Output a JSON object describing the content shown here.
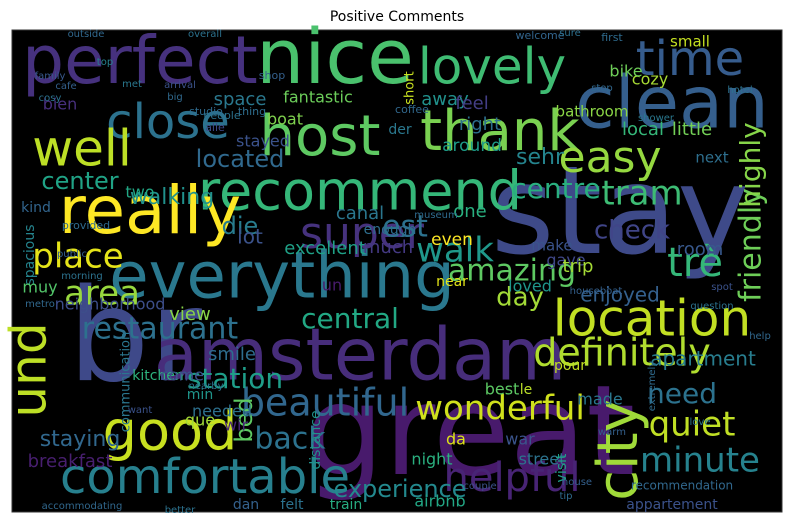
{
  "chart_data": {
    "type": "wordcloud",
    "title": "Positive Comments",
    "background": "#000000",
    "words": [
      {
        "text": "br",
        "color": "#3e4989"
      },
      {
        "text": "great",
        "color": "#481a6c"
      },
      {
        "text": "stay",
        "color": "#3e4a89"
      },
      {
        "text": "amsterdam",
        "color": "#472d7b"
      },
      {
        "text": "nice",
        "color": "#4ac16d"
      },
      {
        "text": "perfect",
        "color": "#46317e"
      },
      {
        "text": "clean",
        "color": "#355f8d"
      },
      {
        "text": "host",
        "color": "#5ec962"
      },
      {
        "text": "thank",
        "color": "#7ad151"
      },
      {
        "text": "lovely",
        "color": "#3fbc73"
      },
      {
        "text": "time",
        "color": "#365c8d"
      },
      {
        "text": "close",
        "color": "#2c728e"
      },
      {
        "text": "recommend",
        "color": "#35b779"
      },
      {
        "text": "really",
        "color": "#fde725"
      },
      {
        "text": "well",
        "color": "#bddf26"
      },
      {
        "text": "easy",
        "color": "#95d840"
      },
      {
        "text": "super",
        "color": "#46327e"
      },
      {
        "text": "everything",
        "color": "#2a788e"
      },
      {
        "text": "location",
        "color": "#c2df23"
      },
      {
        "text": "comfortable",
        "color": "#27808e"
      },
      {
        "text": "good",
        "color": "#c8e020"
      },
      {
        "text": "city",
        "color": "#a0da39"
      },
      {
        "text": "und",
        "color": "#bddf26"
      },
      {
        "text": "definitely",
        "color": "#b0dd2f"
      },
      {
        "text": "beautiful",
        "color": "#31678e"
      },
      {
        "text": "wonderful",
        "color": "#d0e11c"
      },
      {
        "text": "helpful",
        "color": "#482475"
      },
      {
        "text": "minute",
        "color": "#26828e"
      },
      {
        "text": "quiet",
        "color": "#c0df25"
      },
      {
        "text": "amazing",
        "color": "#5ec962"
      },
      {
        "text": "restaurant",
        "color": "#2d718e"
      },
      {
        "text": "tram",
        "color": "#3dbc74"
      },
      {
        "text": "trè",
        "color": "#35b779"
      },
      {
        "text": "friendly",
        "color": "#6ece58"
      },
      {
        "text": "highly",
        "color": "#86d549"
      },
      {
        "text": "walk",
        "color": "#1f988b"
      },
      {
        "text": "est",
        "color": "#2c728e"
      },
      {
        "text": "check",
        "color": "#404588"
      },
      {
        "text": "place",
        "color": "#e5e419"
      },
      {
        "text": "area",
        "color": "#98d83e"
      },
      {
        "text": "center",
        "color": "#20a386"
      },
      {
        "text": "located",
        "color": "#30698e"
      },
      {
        "text": "walking",
        "color": "#21918c"
      },
      {
        "text": "die",
        "color": "#287c8e"
      },
      {
        "text": "central",
        "color": "#22a884"
      },
      {
        "text": "day",
        "color": "#a2da37"
      },
      {
        "text": "station",
        "color": "#1f9e89"
      },
      {
        "text": "back",
        "color": "#2c728e"
      },
      {
        "text": "bed",
        "color": "#5ec962"
      },
      {
        "text": "need",
        "color": "#2c728e"
      },
      {
        "text": "apartment",
        "color": "#287d8e"
      },
      {
        "text": "centre",
        "color": "#29af7f"
      },
      {
        "text": "sehr",
        "color": "#25848e"
      },
      {
        "text": "enjoyed",
        "color": "#34608d"
      },
      {
        "text": "experience",
        "color": "#23898e"
      },
      {
        "text": "staying",
        "color": "#31688e"
      },
      {
        "text": "breakfast",
        "color": "#481f70"
      },
      {
        "text": "excellent",
        "color": "#1fa187"
      },
      {
        "text": "lot",
        "color": "#3b528b"
      },
      {
        "text": "much",
        "color": "#443983"
      },
      {
        "text": "fantastic",
        "color": "#6ccd5a"
      },
      {
        "text": "space",
        "color": "#2a788e"
      },
      {
        "text": "boat",
        "color": "#7fd34e"
      },
      {
        "text": "stayed",
        "color": "#3b528b"
      },
      {
        "text": "away",
        "color": "#21918c"
      },
      {
        "text": "feel",
        "color": "#433e85"
      },
      {
        "text": "small",
        "color": "#c5e021"
      },
      {
        "text": "cozy",
        "color": "#a8db34"
      },
      {
        "text": "bike",
        "color": "#6ece58"
      },
      {
        "text": "bathroom",
        "color": "#8bd646"
      },
      {
        "text": "local",
        "color": "#35b779"
      },
      {
        "text": "little",
        "color": "#73d056"
      },
      {
        "text": "next",
        "color": "#2e6f8e"
      },
      {
        "text": "right",
        "color": "#2d708e"
      },
      {
        "text": "around",
        "color": "#1e9c89"
      },
      {
        "text": "bien",
        "color": "#472f7d"
      },
      {
        "text": "kind",
        "color": "#32658e"
      },
      {
        "text": "spacious",
        "color": "#25848e"
      },
      {
        "text": "muy",
        "color": "#52c569"
      },
      {
        "text": "two",
        "color": "#22a785"
      },
      {
        "text": "one",
        "color": "#29af7f"
      },
      {
        "text": "canal",
        "color": "#2a768e"
      },
      {
        "text": "room",
        "color": "#38588c"
      },
      {
        "text": "even",
        "color": "#fde725"
      },
      {
        "text": "enough",
        "color": "#2e6e8e"
      },
      {
        "text": "gave",
        "color": "#3f4788"
      },
      {
        "text": "trip",
        "color": "#a5db36"
      },
      {
        "text": "make",
        "color": "#3a538b"
      },
      {
        "text": "loved",
        "color": "#1f968b"
      },
      {
        "text": "near",
        "color": "#e2e418"
      },
      {
        "text": "un",
        "color": "#481b6d"
      },
      {
        "text": "neighborhood",
        "color": "#3d4e8a"
      },
      {
        "text": "view",
        "color": "#87d549"
      },
      {
        "text": "smile",
        "color": "#2e6d8e"
      },
      {
        "text": "kitchen",
        "color": "#2db27d"
      },
      {
        "text": "communication",
        "color": "#2a768e"
      },
      {
        "text": "min",
        "color": "#1f958b"
      },
      {
        "text": "needed",
        "color": "#2d708e"
      },
      {
        "text": "made",
        "color": "#2a778e"
      },
      {
        "text": "best",
        "color": "#5cc863"
      },
      {
        "text": "le",
        "color": "#bade28"
      },
      {
        "text": "pour",
        "color": "#c2df23"
      },
      {
        "text": "come",
        "color": "#3b528b"
      },
      {
        "text": "que",
        "color": "#a2da37"
      },
      {
        "text": "wir",
        "color": "#482677"
      },
      {
        "text": "distance",
        "color": "#21918c"
      },
      {
        "text": "night",
        "color": "#2ab07f"
      },
      {
        "text": "da",
        "color": "#dde318"
      },
      {
        "text": "war",
        "color": "#3a548c"
      },
      {
        "text": "street",
        "color": "#2c738e"
      },
      {
        "text": "visit",
        "color": "#1fa088"
      },
      {
        "text": "airbnb",
        "color": "#22a785"
      },
      {
        "text": "felt",
        "color": "#2c728e"
      },
      {
        "text": "train",
        "color": "#27ad81"
      },
      {
        "text": "dan",
        "color": "#34618d"
      },
      {
        "text": "appartement",
        "color": "#3b528b"
      },
      {
        "text": "recommendation",
        "color": "#31688e"
      },
      {
        "text": "outside",
        "color": "#31688e"
      },
      {
        "text": "overall",
        "color": "#2c728e"
      },
      {
        "text": "welcome",
        "color": "#32658e"
      },
      {
        "text": "sure",
        "color": "#2d708e"
      },
      {
        "text": "first",
        "color": "#2f6b8e"
      },
      {
        "text": "top",
        "color": "#26828e"
      },
      {
        "text": "met",
        "color": "#2a788e"
      },
      {
        "text": "arrival",
        "color": "#3b528b"
      },
      {
        "text": "big",
        "color": "#30698e"
      },
      {
        "text": "family",
        "color": "#38588c"
      },
      {
        "text": "cosy",
        "color": "#2c728e"
      },
      {
        "text": "cafe",
        "color": "#34608d"
      },
      {
        "text": "studio",
        "color": "#2f6b8e"
      },
      {
        "text": "people",
        "color": "#2c728e"
      },
      {
        "text": "alle",
        "color": "#3e4a89"
      },
      {
        "text": "thing",
        "color": "#2e6e8e"
      },
      {
        "text": "coffee",
        "color": "#31688e"
      },
      {
        "text": "der",
        "color": "#2a788e"
      },
      {
        "text": "shop",
        "color": "#34608d"
      },
      {
        "text": "short",
        "color": "#c8e020"
      },
      {
        "text": "hotel",
        "color": "#2c728e"
      },
      {
        "text": "stop",
        "color": "#31688e"
      },
      {
        "text": "shower",
        "color": "#2a788e"
      },
      {
        "text": "provided",
        "color": "#2f6b8e"
      },
      {
        "text": "public",
        "color": "#34608d"
      },
      {
        "text": "morning",
        "color": "#2c728e"
      },
      {
        "text": "metro",
        "color": "#31688e"
      },
      {
        "text": "museum",
        "color": "#2f6b8e"
      },
      {
        "text": "houseboat",
        "color": "#34608d"
      },
      {
        "text": "question",
        "color": "#2c728e"
      },
      {
        "text": "spot",
        "color": "#3b528b"
      },
      {
        "text": "help",
        "color": "#31688e"
      },
      {
        "text": "love",
        "color": "#2a788e"
      },
      {
        "text": "house",
        "color": "#34608d"
      },
      {
        "text": "tip",
        "color": "#2f6b8e"
      },
      {
        "text": "couple",
        "color": "#3b528b"
      },
      {
        "text": "better",
        "color": "#2c728e"
      },
      {
        "text": "accommodating",
        "color": "#31688e"
      },
      {
        "text": "want",
        "color": "#3b528b"
      },
      {
        "text": "nearby",
        "color": "#2c728e"
      },
      {
        "text": "warm",
        "color": "#34608d"
      },
      {
        "text": "extremely",
        "color": "#2f6b8e"
      }
    ]
  }
}
